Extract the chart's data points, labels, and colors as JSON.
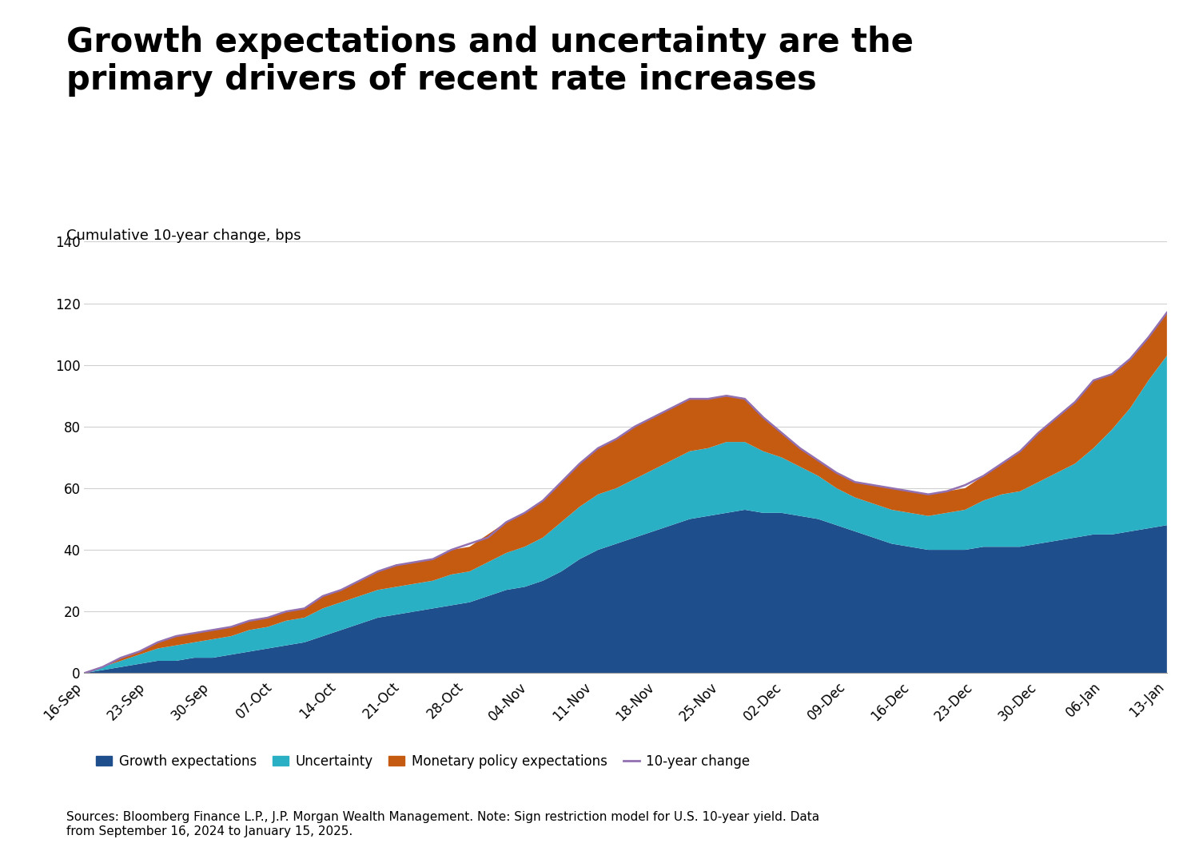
{
  "title": "Growth expectations and uncertainty are the\nprimary drivers of recent rate increases",
  "subtitle": "Cumulative 10-year change, bps",
  "source_text": "Sources: Bloomberg Finance L.P., J.P. Morgan Wealth Management. Note: Sign restriction model for U.S. 10-year yield. Data\nfrom September 16, 2024 to January 15, 2025.",
  "ylim": [
    0,
    140
  ],
  "yticks": [
    0,
    20,
    40,
    60,
    80,
    100,
    120,
    140
  ],
  "x_labels": [
    "16-Sep",
    "23-Sep",
    "30-Sep",
    "07-Oct",
    "14-Oct",
    "21-Oct",
    "28-Oct",
    "04-Nov",
    "11-Nov",
    "18-Nov",
    "25-Nov",
    "02-Dec",
    "09-Dec",
    "16-Dec",
    "23-Dec",
    "30-Dec",
    "06-Jan",
    "13-Jan"
  ],
  "colors": {
    "growth": "#1f4e8c",
    "uncertainty": "#2ab0c5",
    "monetary": "#c55a11",
    "line": "#9370b0",
    "background": "#ffffff"
  },
  "growth_expectations": [
    0,
    1,
    2,
    3,
    4,
    4,
    5,
    5,
    6,
    7,
    8,
    9,
    10,
    12,
    14,
    16,
    18,
    19,
    20,
    21,
    22,
    23,
    25,
    27,
    28,
    30,
    33,
    37,
    40,
    42,
    44,
    46,
    48,
    50,
    51,
    52,
    53,
    52,
    52,
    51,
    50,
    48,
    46,
    44,
    42,
    41,
    40,
    40,
    40,
    41,
    41,
    41,
    42,
    43,
    44,
    45,
    45,
    46,
    47,
    48
  ],
  "uncertainty": [
    0,
    1,
    2,
    3,
    4,
    5,
    5,
    6,
    6,
    7,
    7,
    8,
    8,
    9,
    9,
    9,
    9,
    9,
    9,
    9,
    10,
    10,
    11,
    12,
    13,
    14,
    16,
    17,
    18,
    18,
    19,
    20,
    21,
    22,
    22,
    23,
    22,
    20,
    18,
    16,
    14,
    12,
    11,
    11,
    11,
    11,
    11,
    12,
    13,
    15,
    17,
    18,
    20,
    22,
    24,
    28,
    34,
    40,
    48,
    55
  ],
  "monetary_policy": [
    0,
    0,
    1,
    1,
    2,
    3,
    3,
    3,
    3,
    3,
    3,
    3,
    3,
    4,
    4,
    5,
    6,
    7,
    7,
    7,
    8,
    8,
    9,
    10,
    11,
    12,
    13,
    14,
    15,
    16,
    17,
    17,
    17,
    17,
    16,
    15,
    14,
    11,
    8,
    6,
    5,
    5,
    5,
    6,
    7,
    7,
    7,
    7,
    7,
    8,
    10,
    13,
    16,
    18,
    20,
    22,
    18,
    16,
    14,
    14
  ],
  "total_line": [
    0,
    2,
    5,
    7,
    10,
    12,
    13,
    14,
    15,
    17,
    18,
    20,
    21,
    25,
    27,
    30,
    33,
    35,
    36,
    37,
    40,
    42,
    44,
    49,
    52,
    56,
    62,
    68,
    73,
    76,
    80,
    83,
    86,
    89,
    89,
    90,
    89,
    83,
    78,
    73,
    69,
    65,
    62,
    61,
    60,
    59,
    58,
    59,
    61,
    64,
    68,
    72,
    78,
    83,
    88,
    95,
    97,
    102,
    109,
    117
  ]
}
